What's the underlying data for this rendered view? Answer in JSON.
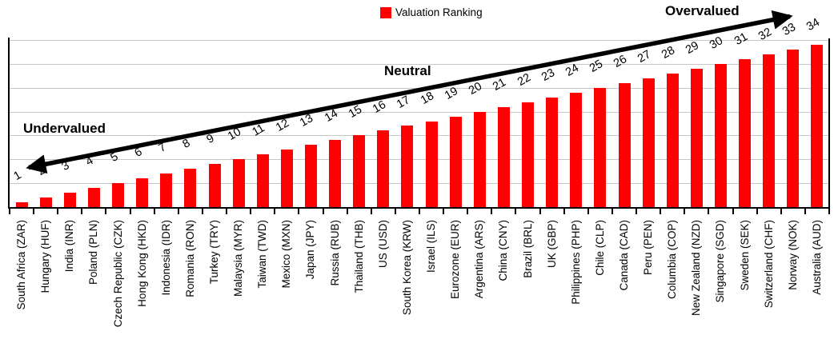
{
  "chart_data": {
    "type": "bar",
    "title": "Valuation Ranking",
    "legend": [
      "Valuation Ranking"
    ],
    "legend_position": "top-center",
    "categories": [
      "South Africa (ZAR)",
      "Hungary (HUF)",
      "India (INR)",
      "Poland (PLN)",
      "Czech Republic (CZK)",
      "Hong Kong (HKD)",
      "Indonesia (IDR)",
      "Romania (RON)",
      "Turkey (TRY)",
      "Malaysia (MYR)",
      "Taiwan (TWD)",
      "Mexico (MXN)",
      "Japan (JPY)",
      "Russia (RUB)",
      "Thailand (THB)",
      "US (USD)",
      "South Korea (KRW)",
      "Israel (ILS)",
      "Eurozone (EUR)",
      "Argentina (ARS)",
      "China (CNY)",
      "Brazil (BRL)",
      "UK (GBP)",
      "Philippines (PHP)",
      "Chile (CLP)",
      "Canada (CAD)",
      "Peru (PEN)",
      "Columbia (COP)",
      "New Zealand (NZD)",
      "Singapore (SGD)",
      "Sweden (SEK)",
      "Switzerland (CHF)",
      "Norway (NOK)",
      "Australia (AUD)"
    ],
    "values": [
      1,
      2,
      3,
      4,
      5,
      6,
      7,
      8,
      9,
      10,
      11,
      12,
      13,
      14,
      15,
      16,
      17,
      18,
      19,
      20,
      21,
      22,
      23,
      24,
      25,
      26,
      27,
      28,
      29,
      30,
      31,
      32,
      33,
      34
    ],
    "data_labels_shown": true,
    "xlabel": "",
    "ylabel": "",
    "ylim": [
      0,
      35
    ],
    "gridline_step": 5,
    "grid": true,
    "value_axis_tick_labels_shown": false,
    "bar_color": "#FF0000",
    "gridline_color": "#C6C6C6",
    "axis_color": "#000000",
    "annotations": [
      "Undervalued",
      "Neutral",
      "Overvalued"
    ],
    "arrow": {
      "double_headed": true,
      "from": "bottom-left (rank 1)",
      "to": "top-right (rank 34)",
      "color": "#000000"
    }
  }
}
